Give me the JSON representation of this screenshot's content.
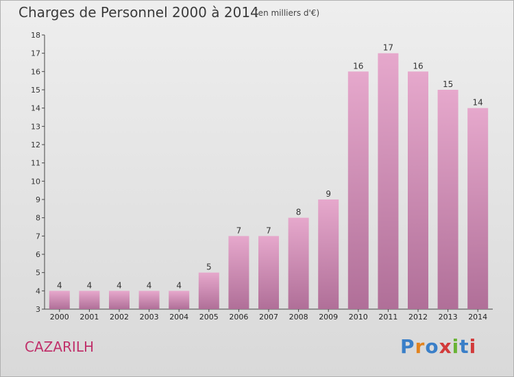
{
  "chart_data": {
    "type": "bar",
    "title": "Charges de Personnel 2000 à 2014",
    "subtitle": "(en milliers d'€)",
    "categories": [
      "2000",
      "2001",
      "2002",
      "2003",
      "2004",
      "2005",
      "2006",
      "2007",
      "2008",
      "2009",
      "2010",
      "2011",
      "2012",
      "2013",
      "2014"
    ],
    "values": [
      4,
      4,
      4,
      4,
      4,
      5,
      7,
      7,
      8,
      9,
      16,
      17,
      16,
      15,
      14
    ],
    "ylim": [
      3,
      18
    ],
    "yticks": [
      3,
      4,
      5,
      6,
      7,
      8,
      9,
      10,
      11,
      12,
      13,
      14,
      15,
      16,
      17,
      18
    ],
    "bar_color_top": "#e6a8cc",
    "bar_color_bottom": "#b06f98",
    "grid": false
  },
  "footer": {
    "town": "CAZARILH",
    "logo_letters": [
      "P",
      "r",
      "o",
      "x",
      "i",
      "t",
      "i"
    ],
    "logo_colors": [
      "#3a7fc8",
      "#e2831e",
      "#3a7fc8",
      "#d23a3a",
      "#69b335",
      "#3a7fc8",
      "#d23a3a"
    ]
  }
}
